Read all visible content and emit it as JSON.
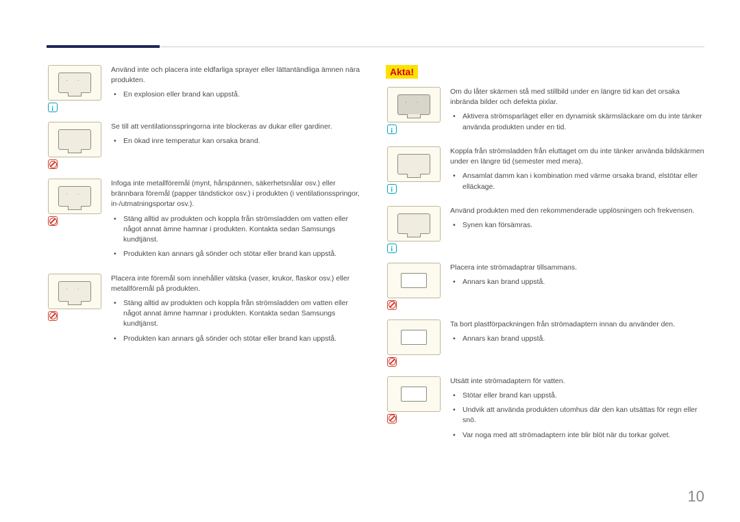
{
  "page_number": "10",
  "header": {
    "accent_color": "#1a2858"
  },
  "akta_label": "Akta!",
  "left": {
    "s1": {
      "p": "Använd inte och placera inte eldfarliga sprayer eller lättantändliga ämnen nära produkten.",
      "b1": "En explosion eller brand kan uppstå."
    },
    "s2": {
      "p": "Se till att ventilationsspringorna inte blockeras av dukar eller gardiner.",
      "b1": "En ökad inre temperatur kan orsaka brand."
    },
    "s3": {
      "p": "Infoga inte metallföremål (mynt, hårspännen, säkerhetsnålar osv.) eller brännbara föremål (papper tändstickor osv.) i produkten (i ventilationsspringor, in-/utmatningsportar osv.).",
      "b1": "Stäng alltid av produkten och koppla från strömsladden om vatten eller något annat ämne hamnar i produkten. Kontakta sedan Samsungs kundtjänst.",
      "b2": "Produkten kan annars gå sönder och stötar eller brand kan uppstå."
    },
    "s4": {
      "p": "Placera inte föremål som innehåller vätska (vaser, krukor, flaskor osv.) eller metallföremål på produkten.",
      "b1": "Stäng alltid av produkten och koppla från strömsladden om vatten eller något annat ämne hamnar i produkten. Kontakta sedan Samsungs kundtjänst.",
      "b2": "Produkten kan annars gå sönder och stötar eller brand kan uppstå."
    }
  },
  "right": {
    "s1": {
      "p": "Om du låter skärmen stå med stillbild under en längre tid kan det orsaka inbrända bilder och defekta pixlar.",
      "b1": "Aktivera strömsparläget eller en dynamisk skärmsläckare om du inte tänker använda produkten under en tid."
    },
    "s2": {
      "p": "Koppla från strömsladden från eluttaget om du inte tänker använda bildskärmen under en längre tid (semester med mera).",
      "b1": "Ansamlat damm kan i kombination med värme orsaka brand, elstötar eller elläckage."
    },
    "s3": {
      "p": "Använd produkten med den rekommenderade upplösningen och frekvensen.",
      "b1": "Synen kan försämras."
    },
    "s4": {
      "p": "Placera inte strömadaptrar tillsammans.",
      "b1": "Annars kan brand uppstå."
    },
    "s5": {
      "p": "Ta bort plastförpackningen från strömadaptern innan du använder den.",
      "b1": "Annars kan brand uppstå."
    },
    "s6": {
      "p": "Utsätt inte strömadaptern för vatten.",
      "b1": "Stötar eller brand kan uppstå.",
      "b2": "Undvik att använda produkten utomhus där den kan utsättas för regn eller snö.",
      "b3": "Var noga med att strömadaptern inte blir blöt när du torkar golvet."
    }
  }
}
